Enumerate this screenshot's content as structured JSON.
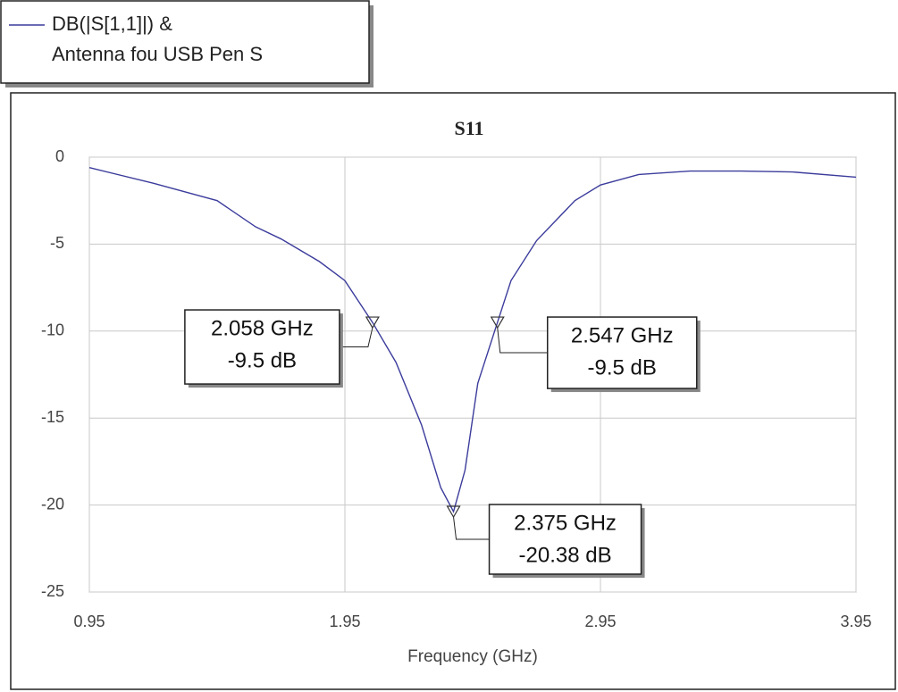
{
  "chart_data": {
    "type": "line",
    "title": "S11",
    "xlabel": "Frequency (GHz)",
    "xlim": [
      0.95,
      3.95
    ],
    "xticks": [
      0.95,
      1.95,
      2.95,
      3.95
    ],
    "ylim": [
      -25,
      0
    ],
    "yticks": [
      0,
      -5,
      -10,
      -15,
      -20,
      -25
    ],
    "grid": true,
    "series": [
      {
        "name": [
          "DB(|S[1,1]|) &",
          "Antenna fou USB Pen S"
        ],
        "color": "#3c3c9c",
        "x": [
          0.95,
          1.2,
          1.45,
          1.6,
          1.7,
          1.85,
          1.95,
          2.058,
          2.15,
          2.25,
          2.325,
          2.375,
          2.42,
          2.47,
          2.547,
          2.6,
          2.7,
          2.85,
          2.95,
          3.1,
          3.3,
          3.5,
          3.7,
          3.95
        ],
        "values": [
          -0.6,
          -1.5,
          -2.5,
          -4,
          -4.7,
          -6,
          -7.1,
          -9.5,
          -11.8,
          -15.4,
          -19,
          -20.38,
          -18,
          -13,
          -9.5,
          -7.1,
          -4.8,
          -2.5,
          -1.6,
          -1,
          -0.8,
          -0.8,
          -0.85,
          -1.15
        ]
      }
    ],
    "markers": [
      {
        "x": 2.058,
        "y": -9.5,
        "label": [
          "2.058 GHz",
          "-9.5 dB"
        ]
      },
      {
        "x": 2.547,
        "y": -9.5,
        "label": [
          "2.547 GHz",
          "-9.5 dB"
        ]
      },
      {
        "x": 2.375,
        "y": -20.38,
        "label": [
          "2.375 GHz",
          "-20.38 dB"
        ]
      }
    ]
  }
}
